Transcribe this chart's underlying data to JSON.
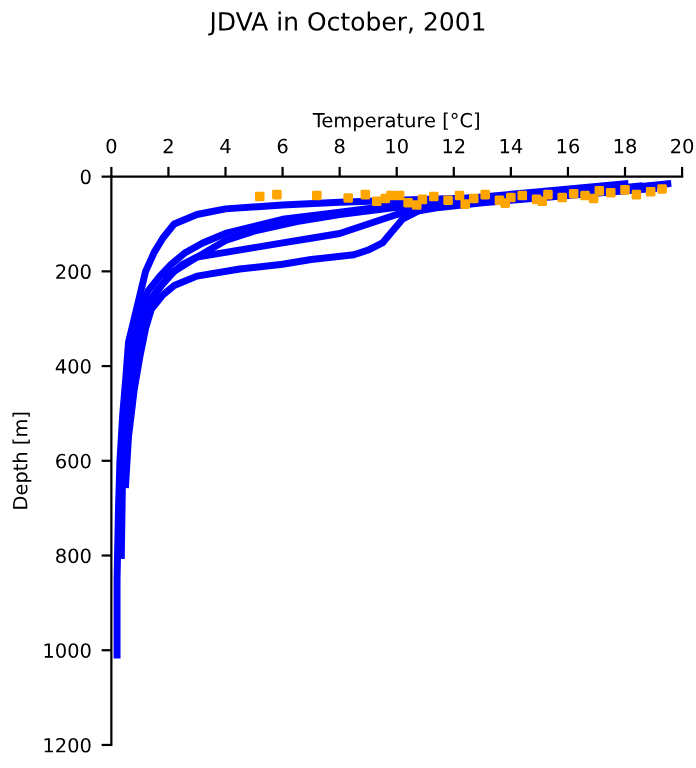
{
  "chart_data": {
    "type": "line",
    "title": "JDVA in October, 2001",
    "xlabel": "Temperature [°C]",
    "ylabel": "Depth [m]",
    "xlim": [
      0,
      20
    ],
    "xticks": [
      0,
      2,
      4,
      6,
      8,
      10,
      12,
      14,
      16,
      18,
      20
    ],
    "ylim": [
      1200,
      0
    ],
    "yticks": [
      0,
      200,
      400,
      600,
      800,
      1000,
      1200
    ],
    "grid": false,
    "line_style": "solid",
    "series": [
      {
        "color": "#0000ff",
        "x": [
          19,
          17,
          15,
          12,
          10,
          8,
          6,
          4,
          3,
          2.2,
          1.8,
          1.5,
          1.2,
          1.0,
          0.8,
          0.6,
          0.5,
          0.4,
          0.3,
          0.25,
          0.2,
          0.2
        ],
        "values": [
          20,
          30,
          40,
          46,
          50,
          54,
          60,
          68,
          80,
          100,
          130,
          160,
          200,
          250,
          300,
          350,
          430,
          500,
          600,
          700,
          850,
          1010
        ]
      },
      {
        "color": "#0000ff",
        "x": [
          19.5,
          17,
          14,
          12,
          10,
          8,
          6.5,
          5,
          4,
          3,
          2.2,
          1.6,
          1.2,
          0.9,
          0.7,
          0.5,
          0.4,
          0.35
        ],
        "values": [
          15,
          30,
          45,
          55,
          65,
          80,
          95,
          115,
          135,
          170,
          200,
          240,
          280,
          330,
          400,
          480,
          600,
          800
        ]
      },
      {
        "color": "#0000ff",
        "x": [
          18.5,
          16,
          14,
          12,
          11,
          10.2,
          9.5,
          9,
          8.5,
          7,
          6,
          4.5,
          3,
          2.2,
          1.8,
          1.4,
          1.2,
          1.0,
          0.8,
          0.6,
          0.5
        ],
        "values": [
          20,
          35,
          45,
          55,
          65,
          90,
          140,
          155,
          165,
          175,
          185,
          195,
          210,
          230,
          250,
          280,
          320,
          380,
          450,
          550,
          650
        ]
      },
      {
        "color": "#0000ff",
        "x": [
          19,
          16,
          13,
          11.5,
          10,
          9,
          8,
          7,
          6,
          5,
          4,
          3,
          2.5,
          2,
          1.5,
          1.2,
          1,
          0.8,
          0.6
        ],
        "values": [
          25,
          40,
          55,
          65,
          80,
          100,
          120,
          130,
          140,
          150,
          160,
          170,
          185,
          210,
          250,
          290,
          340,
          420,
          500
        ]
      },
      {
        "color": "#0000ff",
        "x": [
          18,
          15,
          12,
          10,
          8,
          6,
          5,
          4,
          3.2,
          2.6,
          2.1,
          1.7,
          1.3,
          1,
          0.8,
          0.6
        ],
        "values": [
          15,
          32,
          48,
          60,
          75,
          90,
          105,
          120,
          140,
          160,
          185,
          210,
          240,
          280,
          330,
          380
        ]
      },
      {
        "type": "scatter",
        "marker": "square",
        "color": "#ffa500",
        "x": [
          5.2,
          5.8,
          7.2,
          8.3,
          8.9,
          9.3,
          9.6,
          10.1,
          10.4,
          10.9,
          11.3,
          11.8,
          12.2,
          12.7,
          13.1,
          13.6,
          14.0,
          14.4,
          14.9,
          15.3,
          15.8,
          16.2,
          16.6,
          17.1,
          17.5,
          18.0,
          18.4,
          18.9,
          19.3,
          12.4,
          13.8,
          15.1,
          16.9,
          10.7,
          9.8
        ],
        "values": [
          42,
          38,
          40,
          45,
          38,
          52,
          46,
          40,
          55,
          48,
          42,
          50,
          40,
          46,
          38,
          50,
          44,
          40,
          48,
          38,
          44,
          36,
          40,
          30,
          34,
          28,
          38,
          32,
          26,
          58,
          56,
          52,
          46,
          60,
          40
        ]
      }
    ]
  }
}
